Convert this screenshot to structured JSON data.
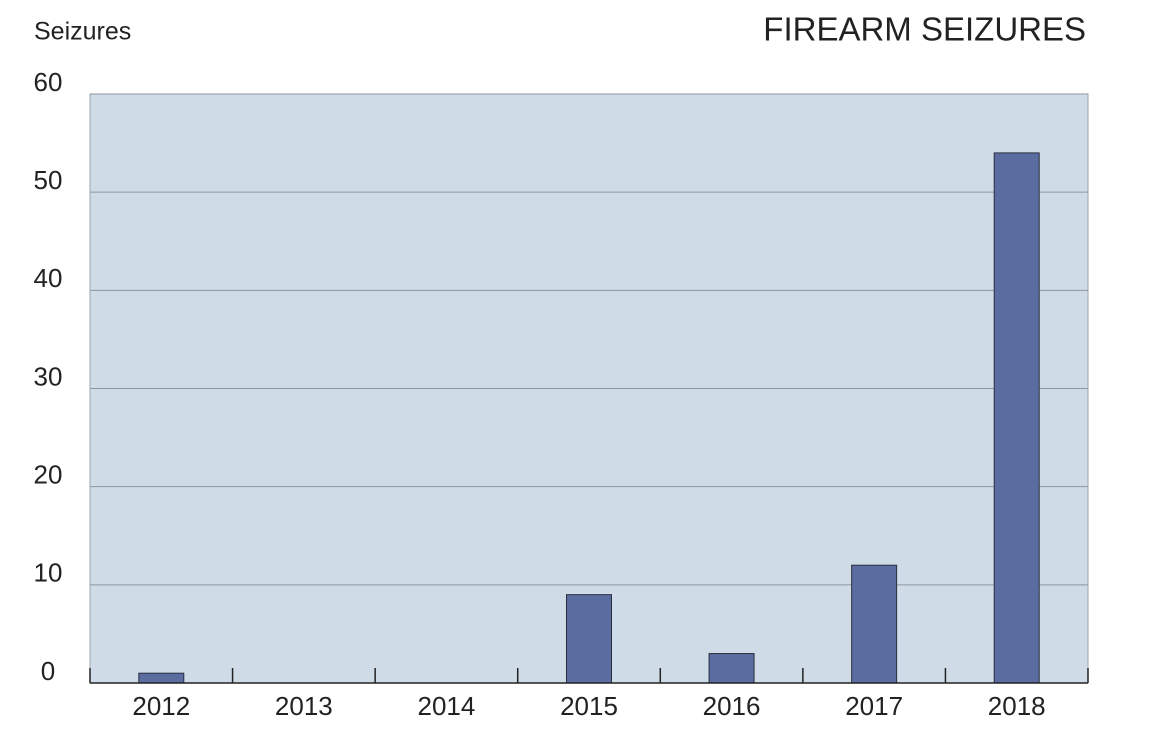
{
  "chart_data": {
    "type": "bar",
    "title": "FIREARM SEIZURES",
    "y_label": "Seizures",
    "categories": [
      "2012",
      "2013",
      "2014",
      "2015",
      "2016",
      "2017",
      "2018"
    ],
    "values": [
      1,
      0,
      0,
      9,
      3,
      12,
      54
    ],
    "color": "#5b6ca0",
    "ylim": [
      0,
      60
    ],
    "yticks": [
      0,
      10,
      20,
      30,
      40,
      50,
      60
    ],
    "grid": true
  }
}
